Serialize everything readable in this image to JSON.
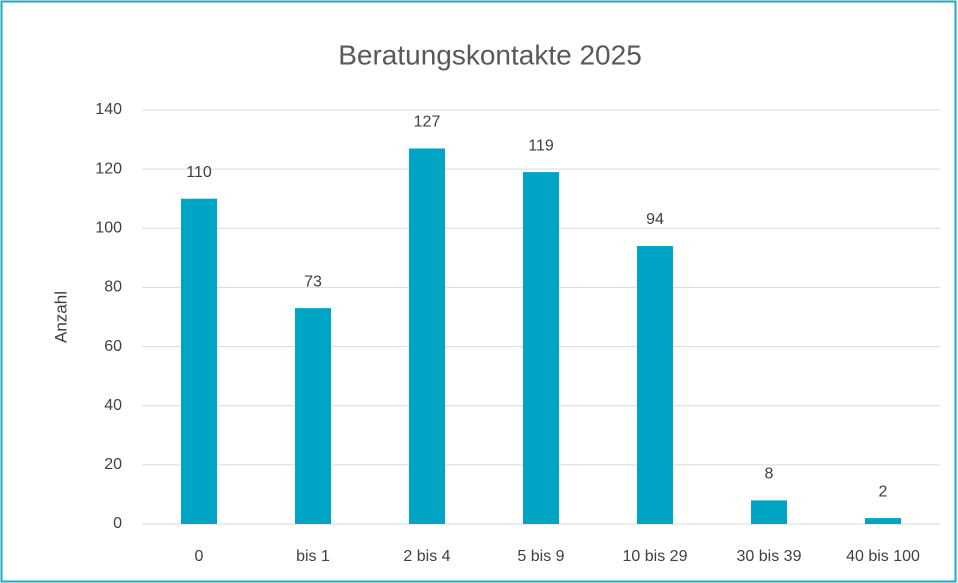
{
  "chart_data": {
    "type": "bar",
    "title": "Beratungskontakte 2025",
    "y_label": "Anzahl",
    "categories": [
      "0",
      "bis 1",
      "2 bis 4",
      "5 bis 9",
      "10 bis 29",
      "30 bis 39",
      "40 bis 100"
    ],
    "values": [
      110,
      73,
      127,
      119,
      94,
      8,
      2
    ],
    "color": "#00a5c5",
    "ylim": [
      0,
      140
    ],
    "yticks": [
      0,
      20,
      40,
      60,
      80,
      100,
      120,
      140
    ],
    "grid": true,
    "data_labels": true
  }
}
